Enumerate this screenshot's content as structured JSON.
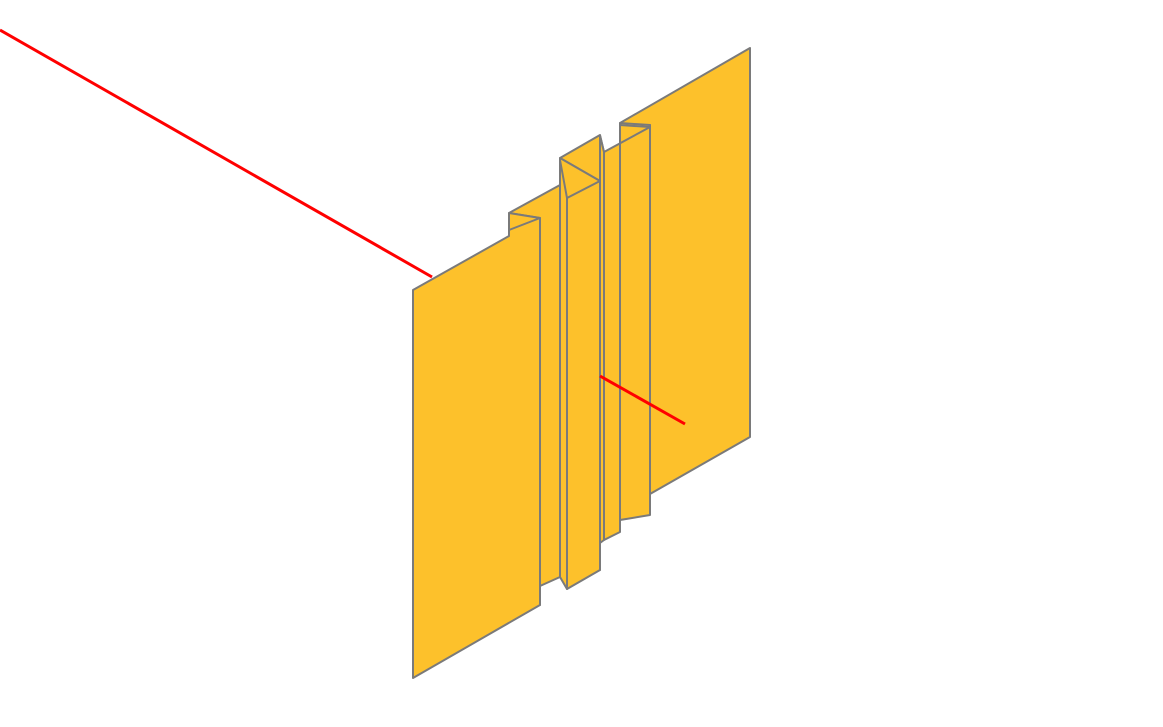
{
  "scene": {
    "background_color": "#ffffff",
    "panel_fill_color": "#fdc12b",
    "panel_edge_color": "#7a7a7a",
    "ray_color": "#ff0000",
    "components": [
      {
        "name": "front-plate"
      },
      {
        "name": "center-fold"
      },
      {
        "name": "middle-strip"
      },
      {
        "name": "rear-plate"
      },
      {
        "name": "incoming-ray"
      },
      {
        "name": "outgoing-ray"
      }
    ]
  }
}
